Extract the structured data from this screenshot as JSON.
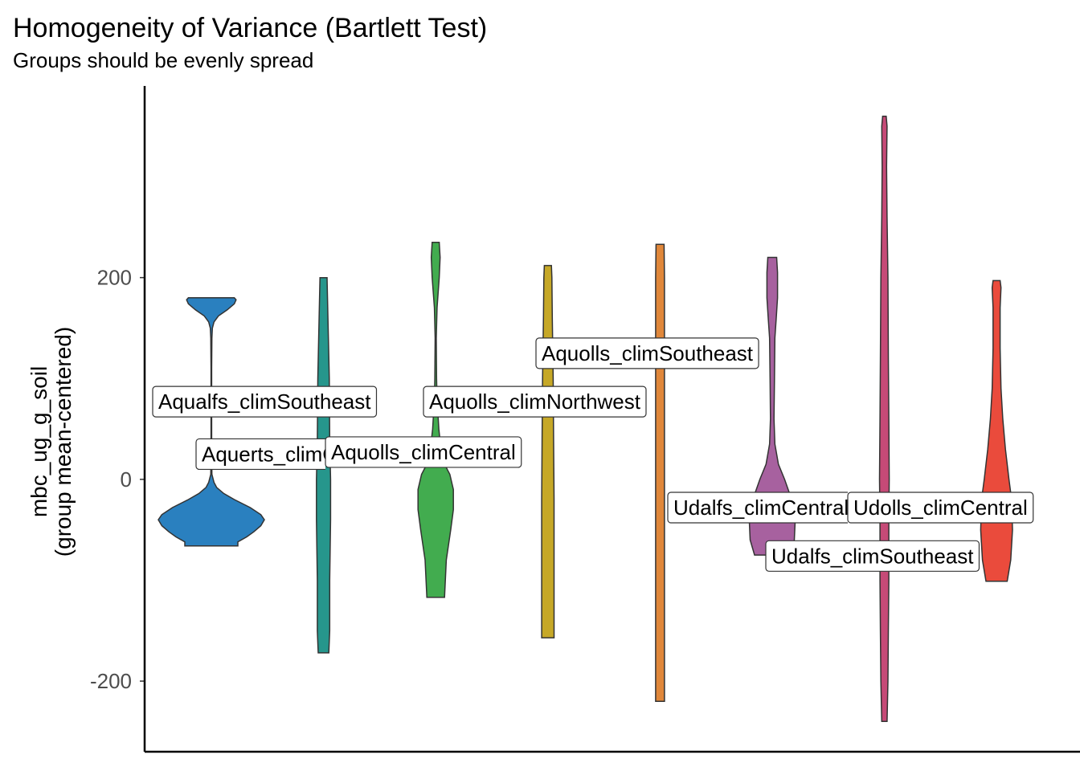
{
  "chart_data": {
    "type": "violin",
    "title": "Homogeneity of Variance (Bartlett Test)",
    "subtitle": "Groups should be evenly spread",
    "ylabel_line1": "mbc_ug_g_soil",
    "ylabel_line2": "(group mean-centered)",
    "xlabel": "",
    "ylim": [
      -270,
      390
    ],
    "yticks": [
      {
        "value": 200,
        "label": "200"
      },
      {
        "value": 0,
        "label": "0"
      },
      {
        "value": -200,
        "label": "-200"
      }
    ],
    "grid": false,
    "legend": "none",
    "groups": [
      {
        "name": "Aqualfs_climSoutheast",
        "color": "#2A80BF",
        "profile": [
          [
            -66,
            30
          ],
          [
            -62,
            30
          ],
          [
            -57,
            40
          ],
          [
            -52,
            48
          ],
          [
            -46,
            56
          ],
          [
            -40,
            60
          ],
          [
            -35,
            56
          ],
          [
            -28,
            44
          ],
          [
            -20,
            26
          ],
          [
            -14,
            14
          ],
          [
            -8,
            6
          ],
          [
            -3,
            3
          ],
          [
            5,
            0.6
          ],
          [
            30,
            0.4
          ],
          [
            70,
            0.4
          ],
          [
            110,
            0.4
          ],
          [
            140,
            0.6
          ],
          [
            150,
            1.2
          ],
          [
            156,
            3
          ],
          [
            162,
            8
          ],
          [
            168,
            18
          ],
          [
            174,
            26
          ],
          [
            178,
            28
          ],
          [
            180,
            26
          ]
        ]
      },
      {
        "name": "Aquerts_climCentral",
        "color": "#26968C",
        "profile": [
          [
            -172,
            6
          ],
          [
            -150,
            7
          ],
          [
            -100,
            7
          ],
          [
            -40,
            8
          ],
          [
            0,
            8
          ],
          [
            40,
            7
          ],
          [
            100,
            6.5
          ],
          [
            160,
            5
          ],
          [
            200,
            4
          ]
        ]
      },
      {
        "name": "Aquolls_climCentral",
        "color": "#42AC4F",
        "profile": [
          [
            -117,
            10
          ],
          [
            -80,
            12
          ],
          [
            -50,
            17
          ],
          [
            -30,
            20
          ],
          [
            -10,
            20
          ],
          [
            5,
            16
          ],
          [
            15,
            10
          ],
          [
            30,
            6
          ],
          [
            50,
            3.5
          ],
          [
            80,
            1.5
          ],
          [
            100,
            1
          ],
          [
            140,
            0.6
          ],
          [
            170,
            1.5
          ],
          [
            200,
            4
          ],
          [
            220,
            5
          ],
          [
            235,
            4
          ]
        ]
      },
      {
        "name": "Aquolls_climNorthwest",
        "color": "#C6A827",
        "profile": [
          [
            -157,
            7
          ],
          [
            -130,
            7
          ],
          [
            -80,
            7
          ],
          [
            -20,
            7
          ],
          [
            40,
            6.5
          ],
          [
            100,
            6
          ],
          [
            160,
            5
          ],
          [
            200,
            4.5
          ],
          [
            212,
            4
          ]
        ]
      },
      {
        "name": "Aquolls_climSoutheast",
        "color": "#E0873A",
        "profile": [
          [
            -220,
            5
          ],
          [
            -200,
            5
          ],
          [
            -100,
            5
          ],
          [
            0,
            5
          ],
          [
            100,
            5
          ],
          [
            200,
            5
          ],
          [
            233,
            4.5
          ]
        ]
      },
      {
        "name": "Udalfs_climCentral",
        "color": "#A7619F",
        "profile": [
          [
            -75,
            20
          ],
          [
            -60,
            25
          ],
          [
            -40,
            26
          ],
          [
            -20,
            22
          ],
          [
            0,
            14
          ],
          [
            15,
            7
          ],
          [
            35,
            3
          ],
          [
            60,
            2
          ],
          [
            100,
            2.5
          ],
          [
            140,
            3
          ],
          [
            160,
            4.5
          ],
          [
            180,
            6
          ],
          [
            205,
            6
          ],
          [
            220,
            5
          ]
        ]
      },
      {
        "name": "Udalfs_climSoutheast",
        "color": "#C64A77",
        "profile": [
          [
            -240,
            3
          ],
          [
            -200,
            4
          ],
          [
            -150,
            4.5
          ],
          [
            -100,
            5
          ],
          [
            -40,
            5
          ],
          [
            0,
            5.5
          ],
          [
            60,
            5
          ],
          [
            120,
            4.5
          ],
          [
            200,
            4
          ],
          [
            260,
            3
          ],
          [
            310,
            2.5
          ],
          [
            350,
            3
          ],
          [
            360,
            2
          ]
        ]
      },
      {
        "name": "Udolls_climCentral",
        "color": "#EA4B3C",
        "profile": [
          [
            -101,
            12
          ],
          [
            -80,
            16
          ],
          [
            -50,
            18
          ],
          [
            -20,
            17
          ],
          [
            0,
            14
          ],
          [
            30,
            10
          ],
          [
            60,
            7
          ],
          [
            90,
            5
          ],
          [
            130,
            4
          ],
          [
            170,
            4
          ],
          [
            190,
            5
          ],
          [
            197,
            4
          ]
        ]
      }
    ],
    "annotations": [
      {
        "text": "Aqualfs_climSoutheast",
        "y": 77
      },
      {
        "text": "Aquerts_climCentral",
        "y": 25,
        "clip_at_next": true
      },
      {
        "text": "Aquolls_climCentral",
        "y": 27
      },
      {
        "text": "Aquolls_climNorthwest",
        "y": 77
      },
      {
        "text": "Aquolls_climSoutheast",
        "y": 125
      },
      {
        "text": "Udalfs_climCentral",
        "y": -28,
        "clip_at_next": true
      },
      {
        "text": "Udolls_climCentral",
        "y": -28
      },
      {
        "text": "Udalfs_climSoutheast",
        "y": -76
      }
    ]
  }
}
